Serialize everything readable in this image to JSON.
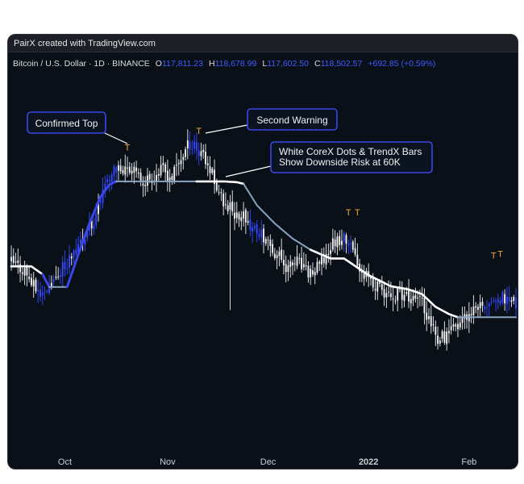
{
  "header": {
    "title": "PairX created with TradingView.com"
  },
  "symbol": {
    "name": "Bitcoin / U.S. Dollar · 1D · BINANCE",
    "o_label": "O",
    "o_value": "117,811.23",
    "h_label": "H",
    "h_value": "118,678.99",
    "l_label": "L",
    "l_value": "117,602.50",
    "c_label": "C",
    "c_value": "118,502.57",
    "change": "+692.85 (+0.59%)"
  },
  "colors": {
    "background": "#0a1018",
    "bar_white": "#f2f2f2",
    "bar_blue": "#3548ff",
    "trend_line_white": "#ffffff",
    "trend_line_blue": "#3a46e6",
    "flat_line": "#8aa4c0",
    "top_marker": "#f0a640",
    "annotation_border": "#3a46e6",
    "annotation_fill": "#0b1220"
  },
  "annotations": {
    "confirmed_top": "Confirmed Top",
    "second_warning": "Second Warning",
    "downside_line1": "White CoreX Dots & TrendX Bars",
    "downside_line2": "Show Downside Risk at 60K"
  },
  "chart_data": {
    "type": "candlestick",
    "xlabel": "",
    "ylabel": "",
    "x_ticks": [
      "Oct",
      "Nov",
      "Dec",
      "2022",
      "Feb"
    ],
    "top_marker_label": "T",
    "grid": false,
    "y_range": [
      37500,
      70000
    ],
    "series_trend_line": {
      "points": [
        {
          "x": 0,
          "y": 52000
        },
        {
          "x": 9,
          "y": 52000
        },
        {
          "x": 14,
          "y": 51000
        },
        {
          "x": 17,
          "y": 49400
        },
        {
          "x": 25,
          "y": 49400
        },
        {
          "x": 30,
          "y": 53500
        },
        {
          "x": 35,
          "y": 57400
        },
        {
          "x": 40,
          "y": 60800
        },
        {
          "x": 44,
          "y": 62300
        },
        {
          "x": 47,
          "y": 62700
        },
        {
          "x": 83,
          "y": 62700
        },
        {
          "x": 95,
          "y": 62700
        },
        {
          "x": 101,
          "y": 62600
        },
        {
          "x": 104,
          "y": 62400
        },
        {
          "x": 110,
          "y": 59700
        },
        {
          "x": 118,
          "y": 57400
        },
        {
          "x": 126,
          "y": 55500
        },
        {
          "x": 134,
          "y": 54100
        },
        {
          "x": 143,
          "y": 53000
        },
        {
          "x": 149,
          "y": 53000
        },
        {
          "x": 160,
          "y": 50900
        },
        {
          "x": 170,
          "y": 49500
        },
        {
          "x": 178,
          "y": 49100
        },
        {
          "x": 184,
          "y": 48500
        },
        {
          "x": 190,
          "y": 46900
        },
        {
          "x": 196,
          "y": 46000
        },
        {
          "x": 200,
          "y": 45600
        },
        {
          "x": 226,
          "y": 45600
        }
      ],
      "segments_blue": [
        [
          14,
          47
        ]
      ],
      "flat_segments": [
        [
          17,
          25
        ],
        [
          47,
          83
        ],
        [
          104,
          134
        ],
        [
          200,
          226
        ]
      ]
    },
    "candles": []
  }
}
